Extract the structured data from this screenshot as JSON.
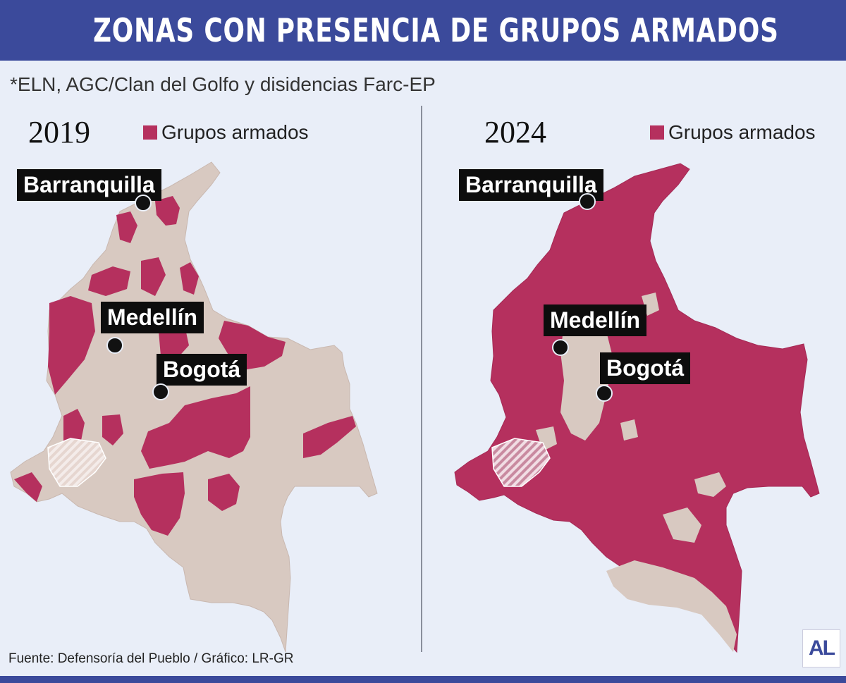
{
  "title": "ZONAS CON PRESENCIA DE GRUPOS ARMADOS",
  "subtitle": "*ELN, AGC/Clan del Golfo y disidencias Farc-EP",
  "colors": {
    "header": "#3b4a9b",
    "armed_groups": "#b5305e",
    "land": "#d8c9c1",
    "background": "#e9eef8"
  },
  "maps": [
    {
      "year": "2019",
      "legend_label": "Grupos armados",
      "cities": {
        "barranquilla": "Barranquilla",
        "medellin": "Medellín",
        "bogota": "Bogotá"
      }
    },
    {
      "year": "2024",
      "legend_label": "Grupos armados",
      "cities": {
        "barranquilla": "Barranquilla",
        "medellin": "Medellín",
        "bogota": "Bogotá"
      }
    }
  ],
  "source": "Fuente: Defensoría del Pueblo / Gráfico: LR-GR",
  "logo": "AL"
}
